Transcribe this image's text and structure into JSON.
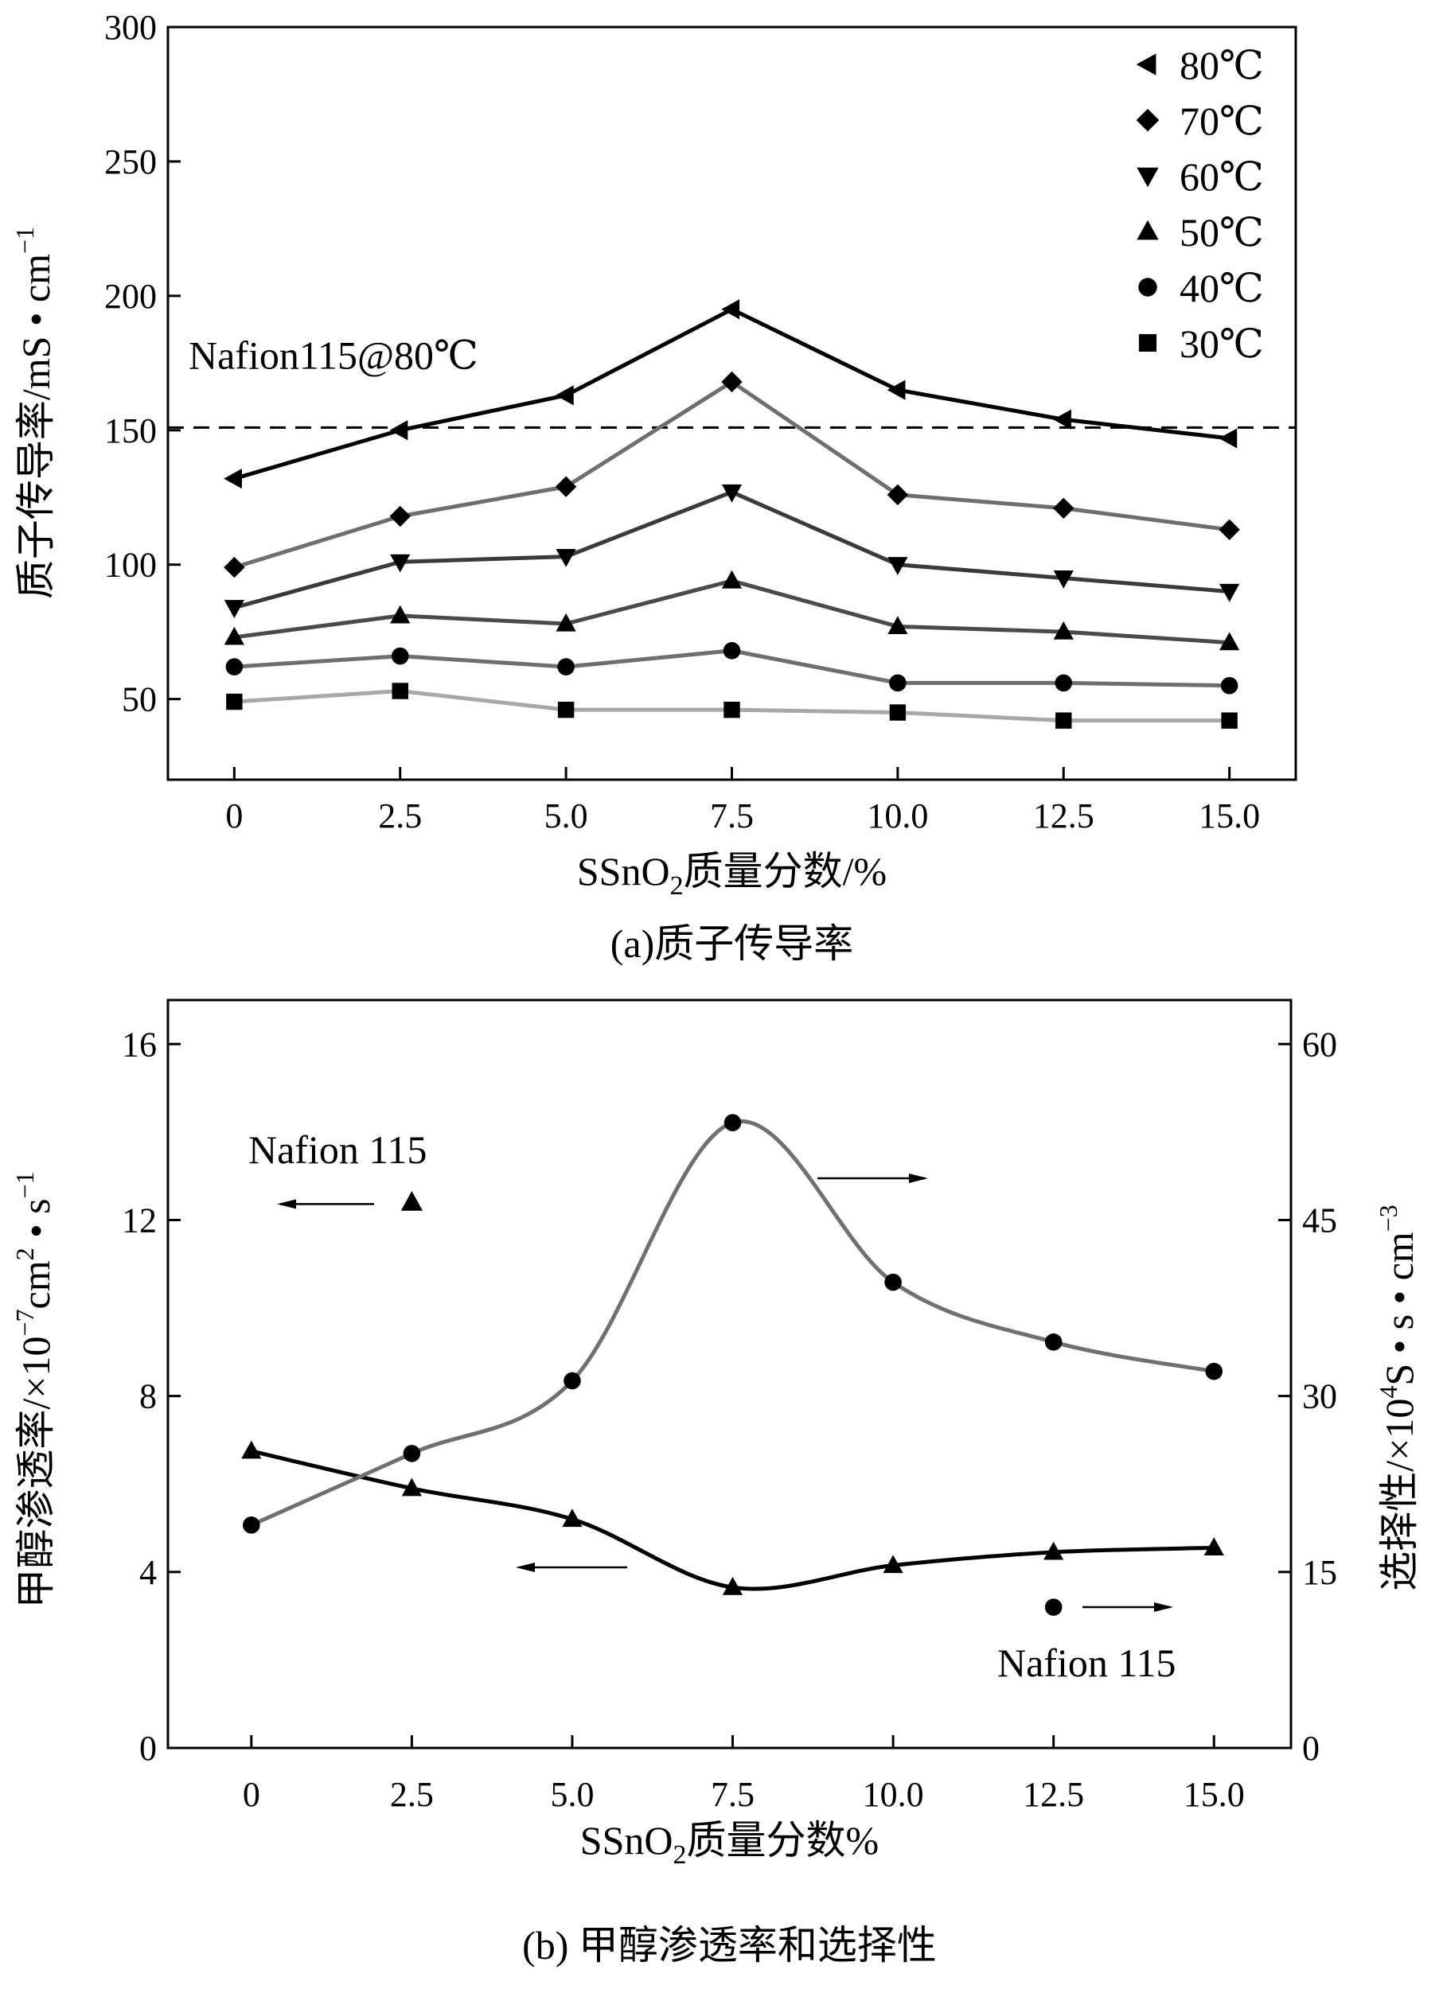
{
  "chart_data": [
    {
      "type": "line",
      "title": "",
      "caption": "(a)质子传导率",
      "xlabel_prefix": "SSnO",
      "xlabel_sub": "2",
      "xlabel_suffix": "质量分数/%",
      "ylabel_main": "质子传导率/mS • cm",
      "ylabel_sup": "−1",
      "x": [
        0,
        2.5,
        5.0,
        7.5,
        10.0,
        12.5,
        15.0
      ],
      "x_tick_labels": [
        "0",
        "2.5",
        "5.0",
        "7.5",
        "10.0",
        "12.5",
        "15.0"
      ],
      "y_ticks": [
        50,
        100,
        150,
        200,
        250,
        300
      ],
      "xlim": [
        -1.0,
        16.0
      ],
      "ylim": [
        20,
        300
      ],
      "reference": {
        "label": "Nafion115@80℃",
        "value": 151
      },
      "legend_position": "top-right",
      "series": [
        {
          "name": "80℃",
          "marker": "triangle-left",
          "color": "#000000",
          "values": [
            132,
            150,
            163,
            195,
            165,
            154,
            147
          ]
        },
        {
          "name": "70℃",
          "marker": "diamond",
          "color": "#6e6e6e",
          "values": [
            99,
            118,
            129,
            168,
            126,
            121,
            113
          ]
        },
        {
          "name": "60℃",
          "marker": "triangle-down",
          "color": "#3a3a3a",
          "values": [
            84,
            101,
            103,
            127,
            100,
            95,
            90
          ]
        },
        {
          "name": "50℃",
          "marker": "triangle-up",
          "color": "#4a4a4a",
          "values": [
            73,
            81,
            78,
            94,
            77,
            75,
            71
          ]
        },
        {
          "name": "40℃",
          "marker": "circle",
          "color": "#6e6e6e",
          "values": [
            62,
            66,
            62,
            68,
            56,
            56,
            55
          ]
        },
        {
          "name": "30℃",
          "marker": "square",
          "color": "#a8a8a8",
          "values": [
            49,
            53,
            46,
            46,
            45,
            42,
            42
          ]
        }
      ]
    },
    {
      "type": "line",
      "title": "",
      "caption": "(b) 甲醇渗透率和选择性",
      "xlabel_prefix": "SSnO",
      "xlabel_sub": "2",
      "xlabel_suffix": "质量分数%",
      "ylabel_left_main": "甲醇渗透率/×10",
      "ylabel_left_sup1": "−7",
      "ylabel_left_mid": "cm",
      "ylabel_left_sup2": "2",
      "ylabel_left_end": " • s",
      "ylabel_left_sup3": "−1",
      "ylabel_right_main": "选择性/×10",
      "ylabel_right_sup1": "4",
      "ylabel_right_mid": "S • s • cm",
      "ylabel_right_sup2": "−3",
      "x": [
        0,
        2.5,
        5.0,
        7.5,
        10.0,
        12.5,
        15.0
      ],
      "x_tick_labels": [
        "0",
        "2.5",
        "5.0",
        "7.5",
        "10.0",
        "12.5",
        "15.0"
      ],
      "y_left_ticks": [
        0,
        4,
        8,
        12,
        16
      ],
      "y_right_ticks": [
        0,
        15,
        30,
        45,
        60
      ],
      "xlim": [
        -1.3,
        16.2
      ],
      "ylim_left": [
        0,
        17
      ],
      "ylim_right": [
        0,
        63.75
      ],
      "series": [
        {
          "name": "甲醇渗透率",
          "axis": "left",
          "marker": "triangle-up",
          "color": "#000000",
          "values": [
            6.75,
            5.9,
            5.2,
            3.65,
            4.15,
            4.45,
            4.55
          ]
        },
        {
          "name": "选择性",
          "axis": "right",
          "marker": "circle",
          "color": "#707070",
          "values": [
            19.0,
            25.1,
            31.3,
            53.3,
            39.7,
            34.6,
            32.1
          ]
        }
      ],
      "annotations": {
        "nafion_left_label": "Nafion 115",
        "nafion_left_permeability": 12.4,
        "nafion_right_label": "Nafion 115",
        "nafion_right_selectivity": 12.0
      }
    }
  ]
}
